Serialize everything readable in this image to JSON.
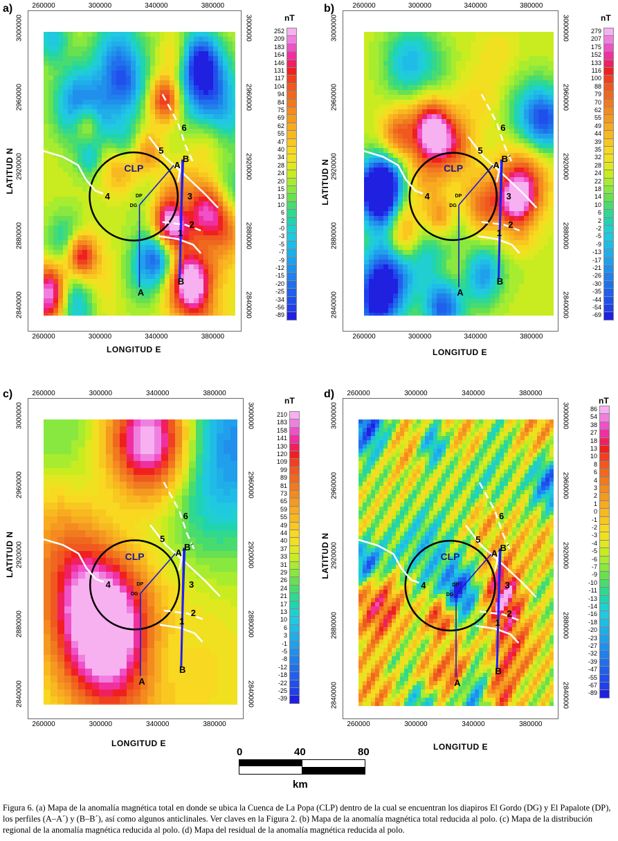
{
  "panels": [
    {
      "id": "a",
      "label": "a)",
      "unit": "nT",
      "legend": [
        "252",
        "209",
        "183",
        "164",
        "146",
        "131",
        "117",
        "104",
        "94",
        "84",
        "75",
        "69",
        "62",
        "55",
        "47",
        "40",
        "34",
        "28",
        "24",
        "20",
        "15",
        "13",
        "10",
        "6",
        "2",
        "-0",
        "-3",
        "-5",
        "-7",
        "-9",
        "-12",
        "-15",
        "-20",
        "-25",
        "-34",
        "-56",
        "-89"
      ],
      "colormap": [
        "#f7b0f0",
        "#f080e0",
        "#f050c8",
        "#f030a0",
        "#f02060",
        "#f02020",
        "#f04020",
        "#f05820",
        "#f06820",
        "#f07a20",
        "#f48a20",
        "#f49a20",
        "#f8aa20",
        "#f8b820",
        "#f8c820",
        "#f8d820",
        "#f0e020",
        "#e0e820",
        "#c8ec20",
        "#a8ec30",
        "#88e840",
        "#68e050",
        "#48dc70",
        "#30d890",
        "#20d4b0",
        "#20d0d0",
        "#20c8e0",
        "#20bce8",
        "#20aee8",
        "#20a0ec",
        "#2090ec",
        "#2080ec",
        "#2070ec",
        "#2060ec",
        "#2050ec",
        "#2040ec",
        "#2020e0"
      ]
    },
    {
      "id": "b",
      "label": "b)",
      "unit": "nT",
      "legend": [
        "279",
        "207",
        "175",
        "152",
        "133",
        "116",
        "100",
        "88",
        "79",
        "70",
        "62",
        "55",
        "49",
        "44",
        "39",
        "35",
        "32",
        "28",
        "24",
        "22",
        "18",
        "14",
        "10",
        "6",
        "2",
        "-2",
        "-5",
        "-9",
        "-13",
        "-17",
        "-21",
        "-26",
        "-30",
        "-35",
        "-44",
        "-54",
        "-69"
      ],
      "colormap": [
        "#f7b0f0",
        "#f080e0",
        "#f050c8",
        "#f030a0",
        "#f02060",
        "#f02020",
        "#f04020",
        "#f05820",
        "#f06820",
        "#f07a20",
        "#f48a20",
        "#f49a20",
        "#f8aa20",
        "#f8b820",
        "#f8c820",
        "#f8d820",
        "#f0e020",
        "#e0e820",
        "#c8ec20",
        "#a8ec30",
        "#88e840",
        "#68e050",
        "#48dc70",
        "#30d890",
        "#20d4b0",
        "#20d0d0",
        "#20c8e0",
        "#20bce8",
        "#20aee8",
        "#20a0ec",
        "#2090ec",
        "#2080ec",
        "#2070ec",
        "#2060ec",
        "#2050ec",
        "#2040ec",
        "#2020e0"
      ]
    },
    {
      "id": "c",
      "label": "c)",
      "unit": "nT",
      "legend": [
        "210",
        "183",
        "158",
        "141",
        "130",
        "120",
        "109",
        "99",
        "89",
        "81",
        "73",
        "65",
        "59",
        "55",
        "49",
        "44",
        "40",
        "37",
        "33",
        "31",
        "29",
        "26",
        "24",
        "21",
        "17",
        "13",
        "10",
        "6",
        "3",
        "-1",
        "-5",
        "-8",
        "-12",
        "-18",
        "-22",
        "-25",
        "-39"
      ],
      "colormap": [
        "#f7b0f0",
        "#f080e0",
        "#f050c8",
        "#f030a0",
        "#f02060",
        "#f02020",
        "#f04020",
        "#f05820",
        "#f06820",
        "#f07a20",
        "#f48a20",
        "#f49a20",
        "#f8aa20",
        "#f8b820",
        "#f8c820",
        "#f8d820",
        "#f0e020",
        "#e0e820",
        "#c8ec20",
        "#a8ec30",
        "#88e840",
        "#68e050",
        "#48dc70",
        "#30d890",
        "#20d4b0",
        "#20d0d0",
        "#20c8e0",
        "#20bce8",
        "#20aee8",
        "#20a0ec",
        "#2090ec",
        "#2080ec",
        "#2070ec",
        "#2060ec",
        "#2050ec",
        "#2040ec",
        "#2020e0"
      ]
    },
    {
      "id": "d",
      "label": "d)",
      "unit": "nT",
      "legend": [
        "86",
        "54",
        "38",
        "27",
        "18",
        "13",
        "10",
        "8",
        "6",
        "4",
        "3",
        "2",
        "1",
        "0",
        "-1",
        "-2",
        "-3",
        "-4",
        "-5",
        "-6",
        "-7",
        "-9",
        "-10",
        "-11",
        "-13",
        "-14",
        "-16",
        "-18",
        "-20",
        "-23",
        "-27",
        "-32",
        "-39",
        "-47",
        "-55",
        "-67",
        "-89"
      ],
      "colormap": [
        "#f7b0f0",
        "#f080e0",
        "#f050c8",
        "#f030a0",
        "#f02060",
        "#f02020",
        "#f04020",
        "#f05820",
        "#f06820",
        "#f07a20",
        "#f48a20",
        "#f49a20",
        "#f8aa20",
        "#f8b820",
        "#f8c820",
        "#f8d820",
        "#f0e020",
        "#e0e820",
        "#c8ec20",
        "#a8ec30",
        "#88e840",
        "#68e050",
        "#48dc70",
        "#30d890",
        "#20d4b0",
        "#20d0d0",
        "#20c8e0",
        "#20bce8",
        "#20aee8",
        "#20a0ec",
        "#2090ec",
        "#2080ec",
        "#2070ec",
        "#2060ec",
        "#2050ec",
        "#2040ec",
        "#2020e0"
      ]
    }
  ],
  "axes": {
    "x_ticks": [
      "260000",
      "300000",
      "340000",
      "380000"
    ],
    "y_ticks_left": [
      "3000000",
      "2960000",
      "2920000",
      "2880000",
      "2840000"
    ],
    "y_ticks_right": [
      "3000000",
      "2960000",
      "2920000",
      "2880000",
      "2840000"
    ],
    "x_label": "LONGITUD  E",
    "y_label": "LATITUD  N"
  },
  "map_labels": {
    "basin": "CLP",
    "dp": "DP",
    "dg": "DG",
    "a_start": "A",
    "a_end_ab": "A",
    "a_end_cd": "A´",
    "b_start": "B",
    "b_end_a": "B",
    "b_end_bcd": "B´",
    "anticlines": [
      "1",
      "2",
      "3",
      "4",
      "5",
      "6"
    ]
  },
  "scale_bar": {
    "ticks": [
      "0",
      "40",
      "80"
    ],
    "unit": "km"
  },
  "caption": "Figura 6. (a) Mapa de la anomalía magnética total en donde se ubica la Cuenca de La Popa (CLP) dentro de la cual se encuentran los diapiros El Gordo (DG) y El Papalote (DP), los perfiles (A–A´) y (B–B´), así como algunos anticlinales. Ver claves en la Figura 2. (b) Mapa de la anomalía magnética total reducida al polo. (c) Mapa de la distribución regional de la anomalía magnética reducida al polo. (d) Mapa del residual de la anomalía magnética reducida al polo."
}
